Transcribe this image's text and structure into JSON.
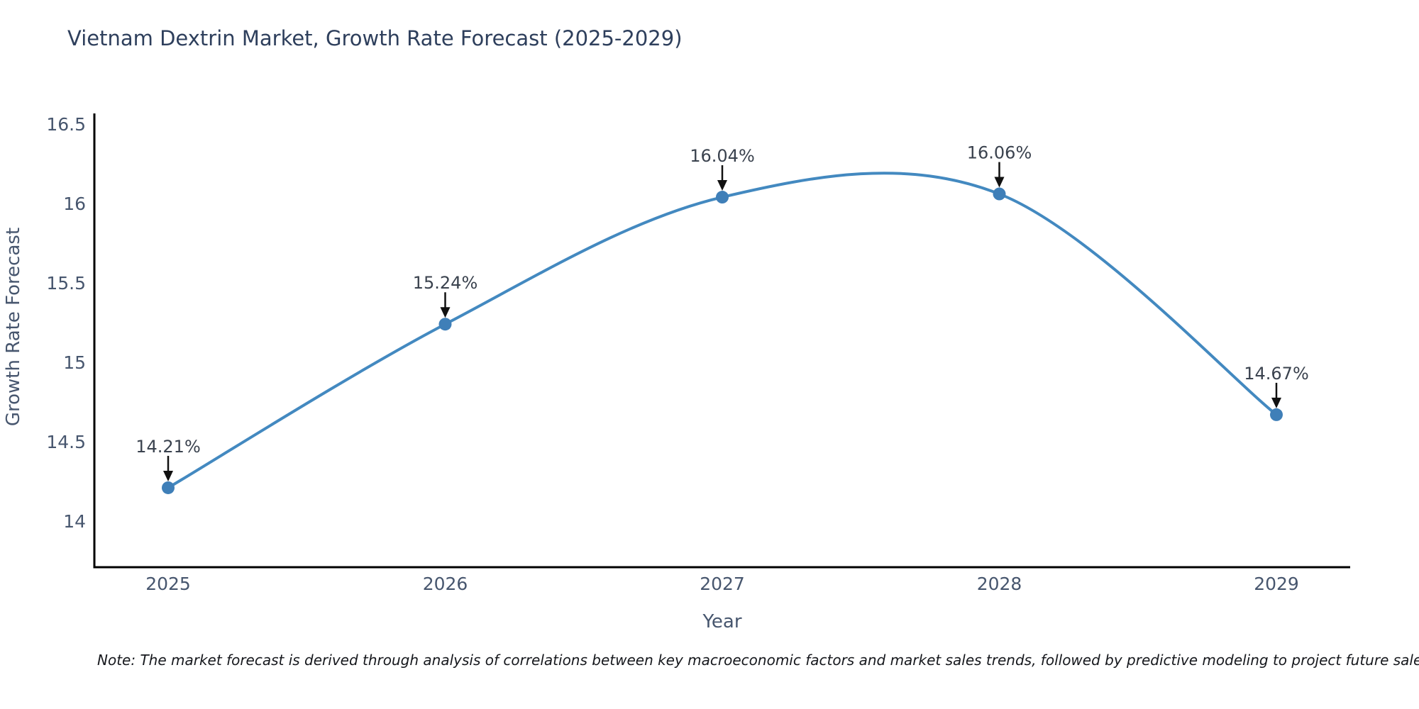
{
  "page": {
    "background": "#ffffff"
  },
  "chart_data": {
    "type": "line",
    "title": "Vietnam Dextrin Market, Growth Rate Forecast (2025-2029)",
    "xlabel": "Year",
    "ylabel": "Growth Rate Forecast",
    "x": [
      2025,
      2026,
      2027,
      2028,
      2029
    ],
    "categories": [
      "2025",
      "2026",
      "2027",
      "2028",
      "2029"
    ],
    "series": [
      {
        "name": "Growth Rate Forecast",
        "values": [
          14.21,
          15.24,
          16.04,
          16.06,
          14.67
        ]
      }
    ],
    "point_labels": [
      "14.21%",
      "15.24%",
      "16.04%",
      "16.06%",
      "14.67%"
    ],
    "y_ticks": [
      14,
      14.5,
      15,
      15.5,
      16,
      16.5
    ],
    "x_tick_labels": [
      "2025",
      "2026",
      "2027",
      "2028",
      "2029"
    ],
    "ylim": [
      13.71,
      16.57
    ],
    "xlim": [
      2024.73,
      2029.27
    ],
    "grid": false,
    "legend": "none",
    "line_style": "smooth-spline",
    "marker": "circle",
    "annotation_arrow": "down-arrow",
    "colors": {
      "line": "#4389c0",
      "marker": "#3f7fb8",
      "axis": "#000000",
      "title": "#2e3f5c",
      "tick_label": "#47566e",
      "axis_label": "#47566e",
      "annotation_text": "#3a424e",
      "annotation_arrow": "#111111",
      "note_text": "#16181d",
      "background": "#ffffff"
    }
  },
  "note": {
    "text": "Note: The market forecast is derived through analysis of correlations between key macroeconomic factors and market sales trends, followed by predictive modeling to project future sales."
  }
}
